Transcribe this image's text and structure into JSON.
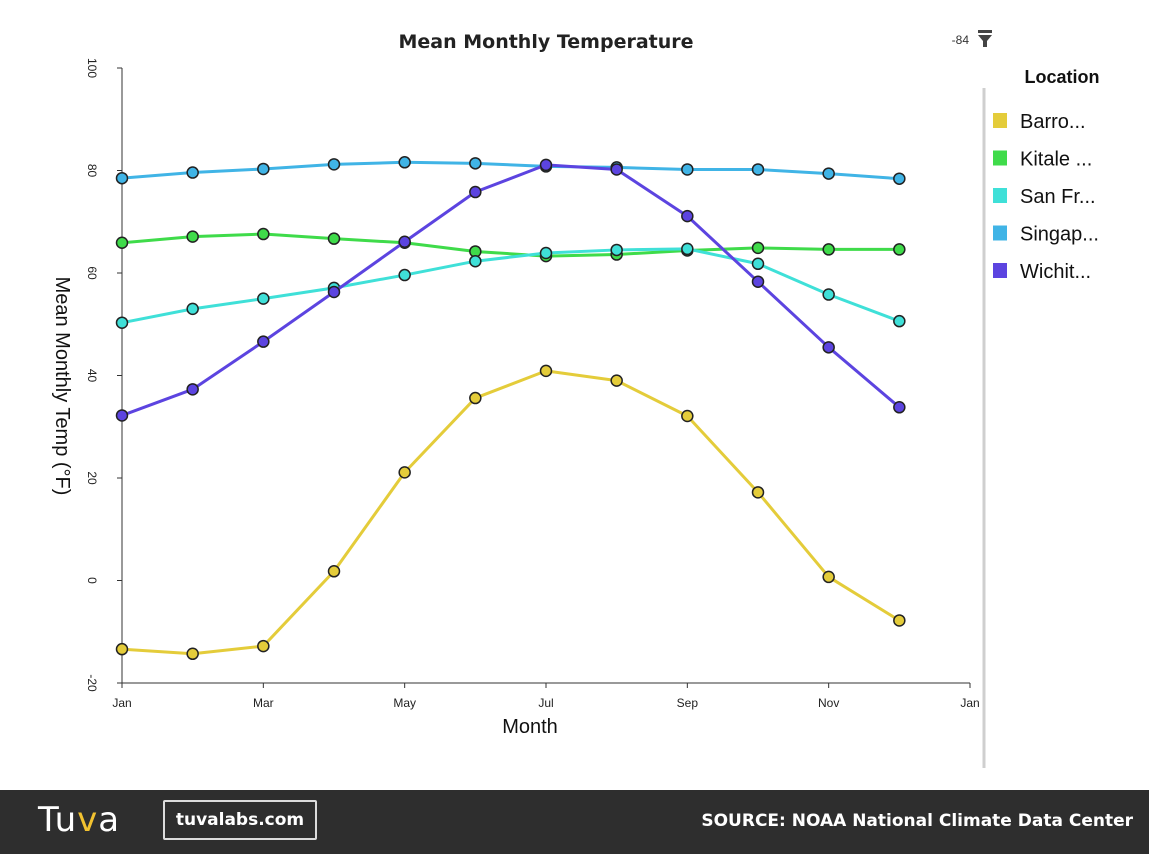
{
  "filter": {
    "value": "-84",
    "icon": "filter-icon"
  },
  "footer": {
    "logo_pre": "Tu",
    "logo_mid": "v",
    "logo_post": "a",
    "site": "tuvalabs.com",
    "source": "SOURCE: NOAA National Climate Data Center"
  },
  "chart_data": {
    "type": "line",
    "title": "Mean Monthly Temperature",
    "xlabel": "Month",
    "ylabel": "Mean Monthly Temp (°F)",
    "ylim": [
      -20,
      100
    ],
    "yticks": [
      -20,
      0,
      20,
      40,
      60,
      80,
      100
    ],
    "xlim": [
      1,
      13
    ],
    "xticks": [
      {
        "value": 1,
        "label": "Jan"
      },
      {
        "value": 3,
        "label": "Mar"
      },
      {
        "value": 5,
        "label": "May"
      },
      {
        "value": 7,
        "label": "Jul"
      },
      {
        "value": 9,
        "label": "Sep"
      },
      {
        "value": 11,
        "label": "Nov"
      },
      {
        "value": 13,
        "label": "Jan"
      }
    ],
    "x": [
      1,
      2,
      3,
      4,
      5,
      6,
      7,
      8,
      9,
      10,
      11,
      12
    ],
    "grid": false,
    "legend": {
      "title": "Location",
      "position": "right"
    },
    "series": [
      {
        "name": "Barro...",
        "color": "#e4cc3a",
        "values": [
          -13.4,
          -14.3,
          -12.8,
          1.8,
          21.1,
          35.6,
          40.9,
          39.0,
          32.1,
          17.2,
          0.7,
          -7.8
        ]
      },
      {
        "name": "Kitale ...",
        "color": "#3fdb4a",
        "values": [
          65.9,
          67.1,
          67.6,
          66.7,
          65.9,
          64.2,
          63.3,
          63.6,
          64.4,
          64.9,
          64.6,
          64.6
        ]
      },
      {
        "name": "San Fr...",
        "color": "#3fe0d8",
        "values": [
          50.3,
          53.0,
          55.0,
          57.1,
          59.6,
          62.3,
          63.9,
          64.5,
          64.7,
          61.8,
          55.8,
          50.6
        ]
      },
      {
        "name": "Singap...",
        "color": "#40b4e6",
        "values": [
          78.5,
          79.6,
          80.3,
          81.2,
          81.6,
          81.4,
          80.8,
          80.6,
          80.2,
          80.2,
          79.4,
          78.4
        ]
      },
      {
        "name": "Wichit...",
        "color": "#5c44e0",
        "values": [
          32.2,
          37.3,
          46.6,
          56.3,
          66.1,
          75.8,
          81.1,
          80.2,
          71.1,
          58.3,
          45.5,
          33.8
        ]
      }
    ]
  }
}
